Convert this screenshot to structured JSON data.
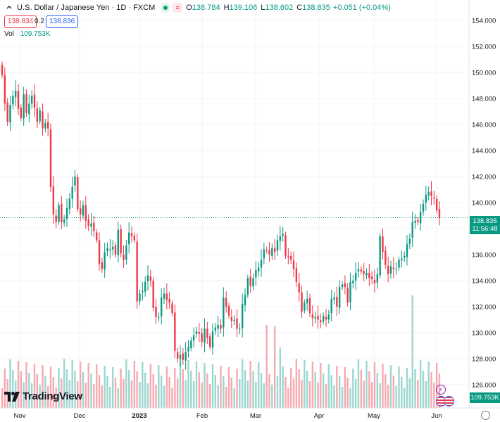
{
  "header": {
    "symbol_title": "U.S. Dollar / Japanese Yen · 1D · FXCM",
    "open_label": "O",
    "open": "138.784",
    "high_label": "H",
    "high": "139.106",
    "low_label": "L",
    "low": "138.602",
    "close_label": "C",
    "close": "138.835",
    "change": "+0.051 (+0.04%)",
    "sell_price": "138.834",
    "spread": "0.2",
    "buy_price": "138.836"
  },
  "volume": {
    "label": "Vol",
    "value": "109.753K"
  },
  "axis_tags": {
    "price": "138.835",
    "countdown": "11:56:48",
    "volume": "109.753K"
  },
  "logo": {
    "text": "TradingView"
  },
  "colors": {
    "up": "#089981",
    "down": "#f23645",
    "up_vol": "#9bd6cf",
    "down_vol": "#f7a9ae",
    "grid": "#f0f3fa"
  },
  "chart_data": {
    "type": "candlestick",
    "title": "U.S. Dollar / Japanese Yen · 1D · FXCM",
    "y_ticks": [
      "126.000",
      "128.000",
      "130.000",
      "132.000",
      "134.000",
      "136.000",
      "138.000",
      "140.000",
      "142.000",
      "144.000",
      "146.000",
      "148.000",
      "150.000",
      "152.000",
      "154.000"
    ],
    "ylim": [
      125.4,
      154.6
    ],
    "x_ticks": [
      "Nov",
      "Dec",
      "2023",
      "Feb",
      "Mar",
      "Apr",
      "May",
      "Jun"
    ],
    "last_price": 138.835,
    "grid": true,
    "closes": [
      149.8,
      147.6,
      146.2,
      147.5,
      148.2,
      148.6,
      147.2,
      146.5,
      148.3,
      146.9,
      147.6,
      148.2,
      147.3,
      146.2,
      147.1,
      145.7,
      146.1,
      145.7,
      141.2,
      139.1,
      138.5,
      139.8,
      138.5,
      138.7,
      139.6,
      140.3,
      141.2,
      142.0,
      139.5,
      139.1,
      139.8,
      138.6,
      138.2,
      138.4,
      137.8,
      137.1,
      135.3,
      134.9,
      136.2,
      136.5,
      136.4,
      136.6,
      136.0,
      137.9,
      136.1,
      135.6,
      136.7,
      137.7,
      137.4,
      137.1,
      132.4,
      133.0,
      133.2,
      133.9,
      134.4,
      134.0,
      131.9,
      131.2,
      131.2,
      132.7,
      133.0,
      132.5,
      132.3,
      131.5,
      128.6,
      128.0,
      128.3,
      127.9,
      128.5,
      128.9,
      129.4,
      129.8,
      130.1,
      129.9,
      129.3,
      130.3,
      129.6,
      128.9,
      130.1,
      130.4,
      130.6,
      130.3,
      132.7,
      132.0,
      131.3,
      130.9,
      131.0,
      130.3,
      130.3,
      132.2,
      132.9,
      134.2,
      133.6,
      134.2,
      134.8,
      135.0,
      135.6,
      136.4,
      136.3,
      136.0,
      136.5,
      136.2,
      137.1,
      137.4,
      137.6,
      135.9,
      135.8,
      135.6,
      134.9,
      133.9,
      133.1,
      131.6,
      132.3,
      132.6,
      131.5,
      131.1,
      131.2,
      131.0,
      130.8,
      131.3,
      131.0,
      131.4,
      132.6,
      132.7,
      132.0,
      133.5,
      133.7,
      133.5,
      132.3,
      133.9,
      134.0,
      134.6,
      134.9,
      134.7,
      134.5,
      134.6,
      134.2,
      134.1,
      133.8,
      134.5,
      137.4,
      136.2,
      135.2,
      134.5,
      135.1,
      134.9,
      134.9,
      135.6,
      135.7,
      135.9,
      136.8,
      137.2,
      138.5,
      138.6,
      138.5,
      139.3,
      139.9,
      140.6,
      140.8,
      140.5,
      140.3,
      139.4,
      138.8
    ]
  }
}
